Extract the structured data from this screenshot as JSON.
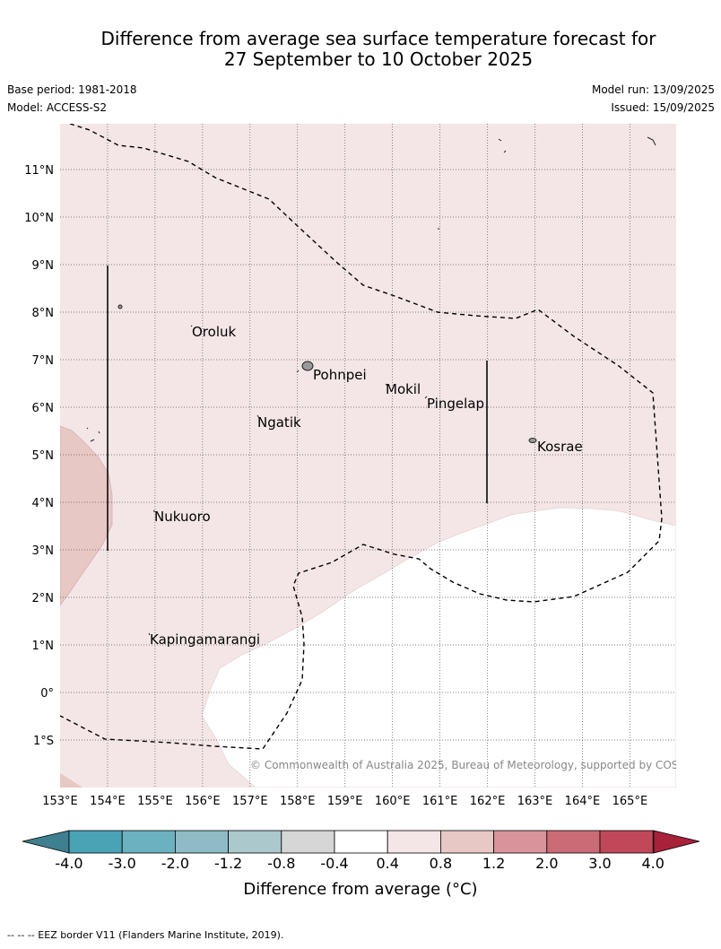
{
  "title_line1": "Difference from average sea surface temperature forecast for",
  "title_line2": "27 September to 10 October 2025",
  "base_period": "Base period: 1981-2018",
  "model": "Model: ACCESS-S2",
  "model_run": "Model run: 13/09/2025",
  "issued": "Issued: 15/09/2025",
  "lat_labels": [
    "11°N",
    "10°N",
    "9°N",
    "8°N",
    "7°N",
    "6°N",
    "5°N",
    "4°N",
    "3°N",
    "2°N",
    "1°N",
    "0°",
    "1°S"
  ],
  "lon_labels": [
    "153°E",
    "154°E",
    "155°E",
    "156°E",
    "157°E",
    "158°E",
    "159°E",
    "160°E",
    "161°E",
    "162°E",
    "163°E",
    "164°E",
    "165°E"
  ],
  "places": {
    "oroluk": "Oroluk",
    "pohnpei": "Pohnpei",
    "mokil": "Mokil",
    "pingelap": "Pingelap",
    "ngatik": "Ngatik",
    "kosrae": "Kosrae",
    "nukuoro": "Nukuoro",
    "kapingamarangi": "Kapingamarangi"
  },
  "copyright": "© Commonwealth of Australia 2025, Bureau of Meteorology, supported by COSPPac",
  "colorbar": {
    "labels": [
      "-4.0",
      "-3.0",
      "-2.0",
      "-1.2",
      "-0.8",
      "-0.4",
      "0.4",
      "0.8",
      "1.2",
      "2.0",
      "3.0",
      "4.0"
    ],
    "colors": [
      "#4aa3b5",
      "#6cb1c0",
      "#8ebbc6",
      "#abc8cc",
      "#d6d6d6",
      "#ffffff",
      "#f4e6e6",
      "#e8c8c4",
      "#d9939a",
      "#cb6b76",
      "#c04858"
    ],
    "under_color": "#3f8090",
    "over_color": "#a8203a",
    "title": "Difference from average (°C)"
  },
  "footer": "--  --  -- EEZ border V11 (Flanders Marine Institute, 2019)."
}
